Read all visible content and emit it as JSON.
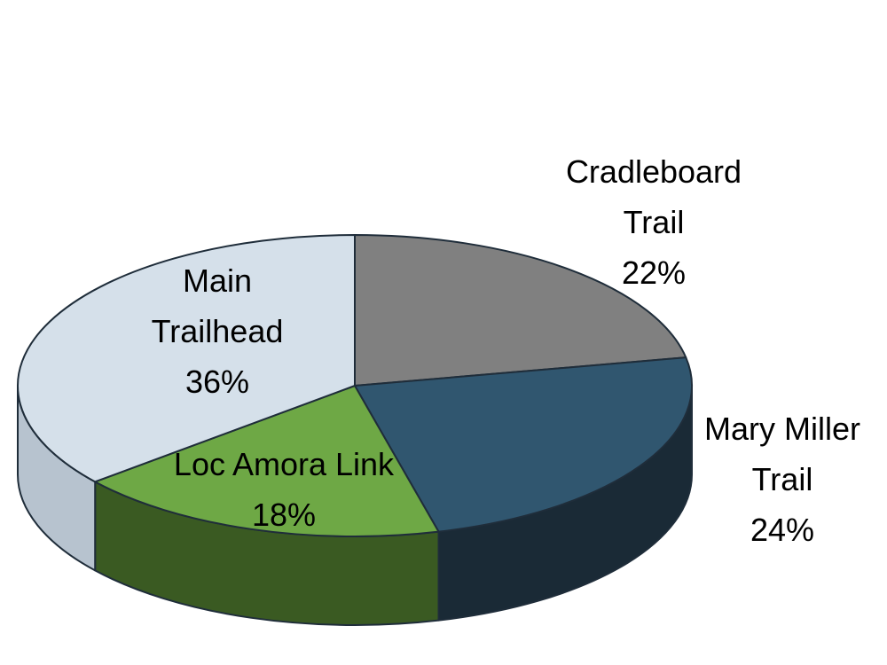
{
  "chart_data": {
    "type": "pie3d",
    "categories": [
      "Cradleboard Trail",
      "Mary Miller Trail",
      "Loc Amora Link",
      "Main Trailhead"
    ],
    "values": [
      22,
      24,
      18,
      36
    ],
    "value_labels": [
      "22%",
      "24%",
      "18%",
      "36%"
    ],
    "colors": [
      "#808080",
      "#30566f",
      "#6ea845",
      "#d5e0ea"
    ],
    "side_colors": [
      "#555555",
      "#1a2a36",
      "#3a5a22",
      "#b7c3cf"
    ]
  }
}
